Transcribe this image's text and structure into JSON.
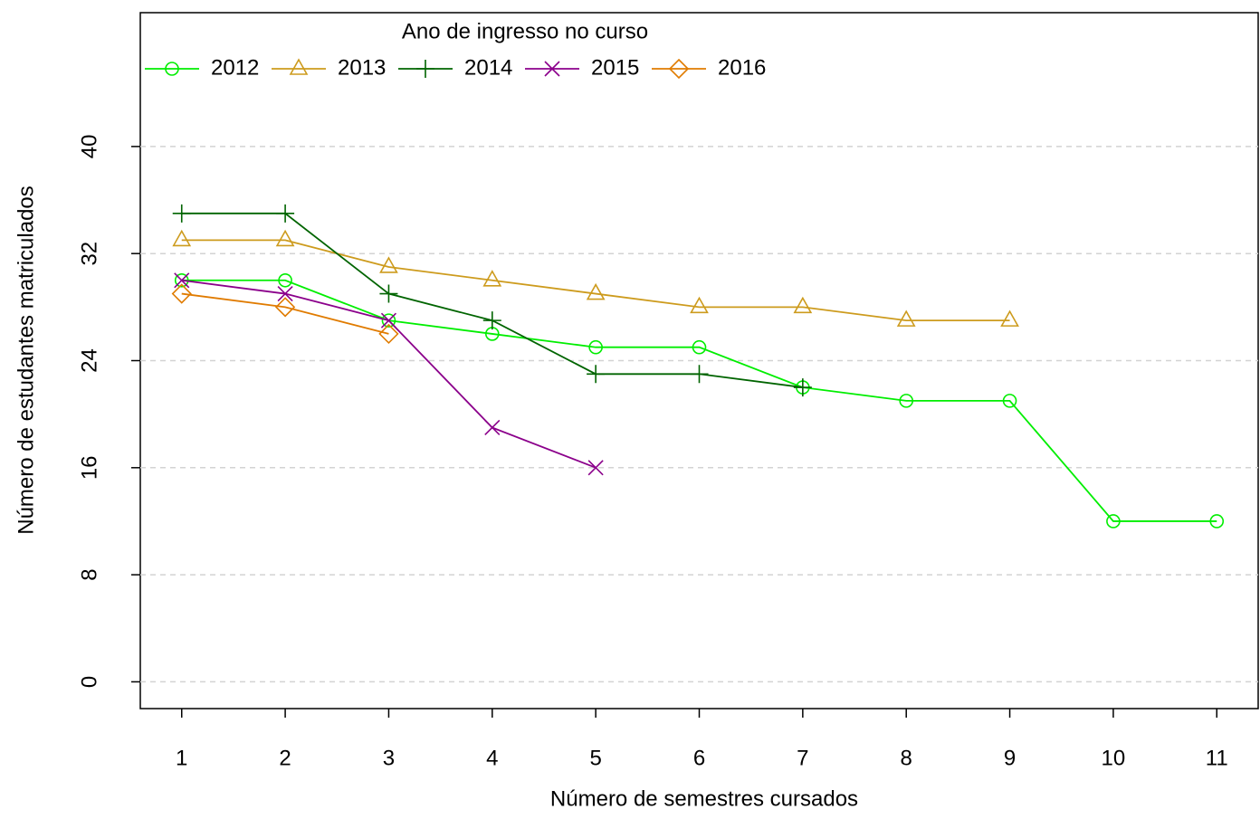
{
  "chart_data": {
    "type": "line",
    "legend_title": "Ano de ingresso no curso",
    "xlabel": "Número de semestres cursados",
    "ylabel": "Número de estudantes matriculados",
    "xlim": [
      0.6,
      11.4
    ],
    "ylim": [
      -2,
      50
    ],
    "xticks": [
      1,
      2,
      3,
      4,
      5,
      6,
      7,
      8,
      9,
      10,
      11
    ],
    "yticks": [
      0,
      8,
      16,
      24,
      32,
      40
    ],
    "grid": true,
    "legend_position": "top",
    "series": [
      {
        "name": "2012",
        "color": "#00ee00",
        "marker": "circle",
        "x": [
          1,
          2,
          3,
          4,
          5,
          6,
          7,
          8,
          9,
          10,
          11
        ],
        "values": [
          30,
          30,
          27,
          26,
          25,
          25,
          22,
          21,
          21,
          12,
          12
        ]
      },
      {
        "name": "2013",
        "color": "#cd9b1d",
        "marker": "triangle",
        "x": [
          1,
          2,
          3,
          4,
          5,
          6,
          7,
          8,
          9
        ],
        "values": [
          33,
          33,
          31,
          30,
          29,
          28,
          28,
          27,
          27
        ]
      },
      {
        "name": "2014",
        "color": "#006400",
        "marker": "plus",
        "x": [
          1,
          2,
          3,
          4,
          5,
          6,
          7
        ],
        "values": [
          35,
          35,
          29,
          27,
          23,
          23,
          22
        ]
      },
      {
        "name": "2015",
        "color": "#8b008b",
        "marker": "cross",
        "x": [
          1,
          2,
          3,
          4,
          5
        ],
        "values": [
          30,
          29,
          27,
          19,
          16
        ]
      },
      {
        "name": "2016",
        "color": "#e07b00",
        "marker": "diamond",
        "x": [
          1,
          2,
          3
        ],
        "values": [
          29,
          28,
          26
        ]
      }
    ]
  }
}
